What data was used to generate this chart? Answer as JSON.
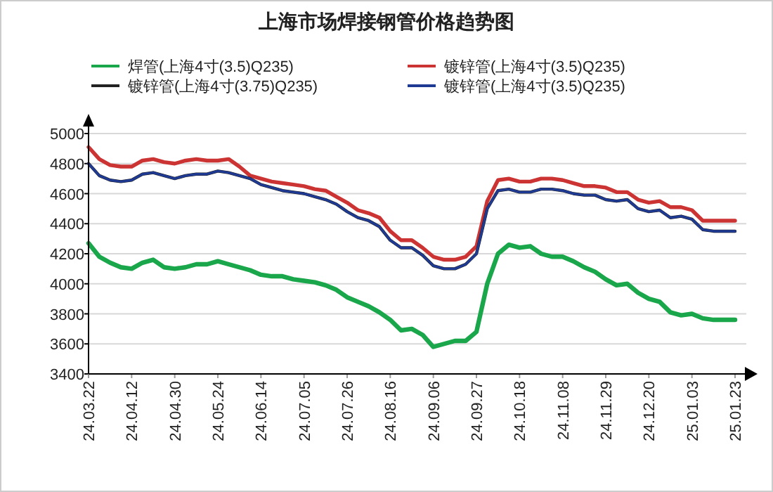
{
  "chart_data": {
    "type": "line",
    "title": "上海市场焊接钢管价格趋势图",
    "categories": [
      "24.03.22",
      null,
      null,
      null,
      "24.04.12",
      null,
      null,
      null,
      "24.04.30",
      null,
      null,
      null,
      "24.05.24",
      null,
      null,
      null,
      "24.06.14",
      null,
      null,
      null,
      "24.07.05",
      null,
      null,
      null,
      "24.07.26",
      null,
      null,
      null,
      "24.08.16",
      null,
      null,
      null,
      "24.09.06",
      null,
      null,
      null,
      "24.09.27",
      null,
      null,
      null,
      "24.10.18",
      null,
      null,
      null,
      "24.11.08",
      null,
      null,
      null,
      "24.11.29",
      null,
      null,
      null,
      "24.12.20",
      null,
      null,
      null,
      "25.01.03",
      null,
      null,
      null,
      "25.01.23"
    ],
    "series": [
      {
        "name": "焊管(上海4寸(3.5)Q235)",
        "color": "#1aa64a",
        "values": [
          4270,
          4180,
          4140,
          4110,
          4100,
          4140,
          4160,
          4110,
          4100,
          4110,
          4130,
          4130,
          4150,
          4130,
          4110,
          4090,
          4060,
          4050,
          4050,
          4030,
          4020,
          4010,
          3990,
          3960,
          3910,
          3880,
          3850,
          3810,
          3760,
          3690,
          3700,
          3660,
          3580,
          3600,
          3620,
          3620,
          3680,
          4000,
          4200,
          4260,
          4240,
          4250,
          4200,
          4180,
          4180,
          4150,
          4110,
          4080,
          4030,
          3990,
          4000,
          3940,
          3900,
          3880,
          3810,
          3790,
          3800,
          3770,
          3760,
          3760,
          3760
        ]
      },
      {
        "name": "镀锌管(上海4寸(3.5)Q235)",
        "color": "#cc3333",
        "values": [
          4910,
          4830,
          4790,
          4780,
          4780,
          4820,
          4830,
          4810,
          4800,
          4820,
          4830,
          4820,
          4820,
          4830,
          4780,
          4720,
          4700,
          4680,
          4670,
          4660,
          4650,
          4630,
          4620,
          4580,
          4540,
          4490,
          4470,
          4440,
          4350,
          4290,
          4290,
          4240,
          4180,
          4160,
          4160,
          4180,
          4250,
          4550,
          4690,
          4700,
          4680,
          4680,
          4700,
          4700,
          4690,
          4670,
          4650,
          4650,
          4640,
          4610,
          4610,
          4560,
          4540,
          4550,
          4510,
          4510,
          4490,
          4420,
          4420,
          4420,
          4420
        ]
      },
      {
        "name": "镀锌管(上海4寸(3.75)Q235)",
        "color": "#222222",
        "values": [
          4800,
          4720,
          4690,
          4680,
          4690,
          4730,
          4740,
          4720,
          4700,
          4720,
          4730,
          4730,
          4750,
          4740,
          4720,
          4700,
          4660,
          4640,
          4620,
          4610,
          4600,
          4580,
          4560,
          4530,
          4480,
          4440,
          4420,
          4380,
          4290,
          4240,
          4240,
          4190,
          4120,
          4100,
          4100,
          4130,
          4200,
          4500,
          4620,
          4630,
          4610,
          4610,
          4630,
          4630,
          4620,
          4600,
          4590,
          4590,
          4560,
          4550,
          4560,
          4500,
          4480,
          4490,
          4440,
          4450,
          4430,
          4360,
          4350,
          4350,
          4350
        ]
      },
      {
        "name": "镀锌管(上海4寸(3.5)Q235)",
        "color": "#1f3a93",
        "values": [
          4800,
          4720,
          4690,
          4680,
          4690,
          4730,
          4740,
          4720,
          4700,
          4720,
          4730,
          4730,
          4750,
          4740,
          4720,
          4700,
          4660,
          4640,
          4620,
          4610,
          4600,
          4580,
          4560,
          4530,
          4480,
          4440,
          4420,
          4380,
          4290,
          4240,
          4240,
          4190,
          4120,
          4100,
          4100,
          4130,
          4200,
          4500,
          4620,
          4630,
          4610,
          4610,
          4630,
          4630,
          4620,
          4600,
          4590,
          4590,
          4560,
          4550,
          4560,
          4500,
          4480,
          4490,
          4440,
          4450,
          4430,
          4360,
          4350,
          4350,
          4350
        ]
      }
    ],
    "ylim": [
      3400,
      5000
    ],
    "yticks": [
      3400,
      3600,
      3800,
      4000,
      4200,
      4400,
      4600,
      4800,
      5000
    ],
    "grid": "y",
    "legend": "top"
  }
}
